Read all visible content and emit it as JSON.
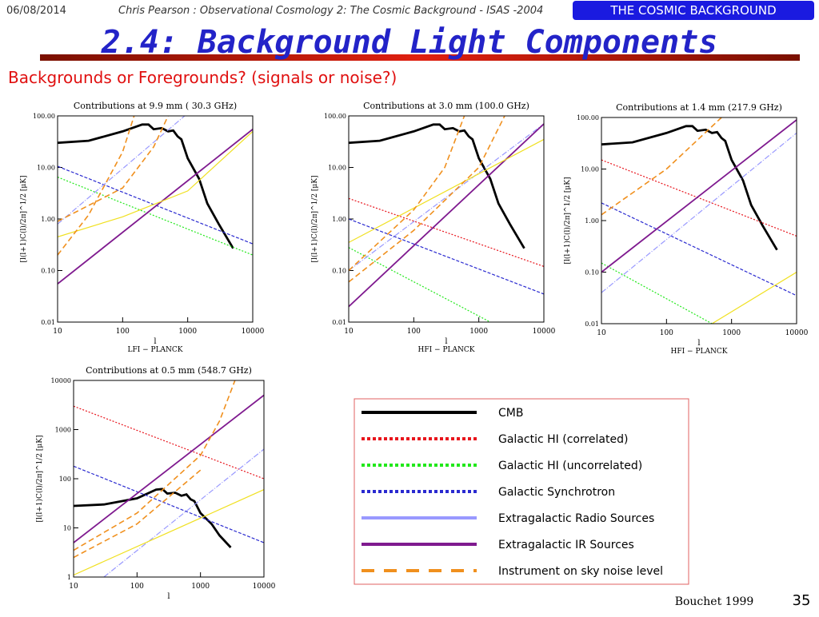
{
  "slide": {
    "date": "06/08/2014",
    "footer": "Chris Pearson :   Observational Cosmology 2: The Cosmic Background - ISAS -2004",
    "badge": "THE COSMIC BACKGROUND",
    "title": "2.4: Background Light Components",
    "subtitle": "Backgrounds or Foregrounds? (signals or noise?)",
    "credit": "Bouchet 1999",
    "page": "35"
  },
  "legend": [
    {
      "name": "CMB",
      "color": "#000000",
      "dash": "solid"
    },
    {
      "name": "Galactic HI (correlated)",
      "color": "#e8141c",
      "dash": "dotted"
    },
    {
      "name": "Galactic HI (uncorrelated)",
      "color": "#22e81b",
      "dash": "dotted"
    },
    {
      "name": "Galactic Synchrotron",
      "color": "#2a2ad0",
      "dash": "dashed"
    },
    {
      "name": "Extragalactic Radio Sources",
      "color": "#9999ff",
      "dash": "dashdot"
    },
    {
      "name": "Extragalactic IR Sources",
      "color": "#7f1a8f",
      "dash": "solid"
    },
    {
      "name": "Instrument on sky noise level",
      "color": "#f0901e",
      "dash": "longdash"
    }
  ],
  "chart_data": [
    {
      "type": "line",
      "title": "Contributions at 9.9 mm ( 30.3 GHz)",
      "xlabel": "l",
      "xlabel2": "LFI − PLANCK",
      "ylabel": "[l(l+1)C(l)/2π]^1/2 [μK]",
      "xscale": "log",
      "yscale": "log",
      "xlim": [
        10,
        10000
      ],
      "ylim": [
        0.01,
        100
      ],
      "xticks": [
        10,
        100,
        1000,
        10000
      ],
      "yticks": [
        {
          "value": 100,
          "label": "100.00"
        },
        {
          "value": 10,
          "label": "10.00"
        },
        {
          "value": 1,
          "label": "1.00"
        },
        {
          "value": 0.1,
          "label": "0.10"
        },
        {
          "value": 0.01,
          "label": "0.01"
        }
      ],
      "series": [
        {
          "color": "#000000",
          "x": [
            10,
            30,
            100,
            200,
            250,
            300,
            400,
            500,
            600,
            700,
            800,
            1000,
            1500,
            2000,
            3000,
            5000
          ],
          "values": [
            30,
            33,
            50,
            68,
            68,
            55,
            58,
            50,
            52,
            40,
            35,
            15,
            6,
            2,
            0.8,
            0.27
          ]
        },
        {
          "color": "#22e81b",
          "x": [
            10,
            10000
          ],
          "values": [
            6.5,
            0.2
          ]
        },
        {
          "color": "#2a2ad0",
          "x": [
            10,
            10000
          ],
          "values": [
            10.5,
            0.33
          ]
        },
        {
          "color": "#9999ff",
          "x": [
            10,
            900
          ],
          "values": [
            0.8,
            100
          ]
        },
        {
          "color": "#7f1a8f",
          "x": [
            10,
            10000
          ],
          "values": [
            0.055,
            55
          ]
        },
        {
          "color": "#f0e020",
          "x": [
            10,
            100,
            1000,
            10000
          ],
          "values": [
            0.45,
            1.1,
            3.5,
            50
          ]
        },
        {
          "color": "#f0901e",
          "x": [
            10,
            30,
            100,
            150
          ],
          "values": [
            0.2,
            1.2,
            20,
            100
          ]
        },
        {
          "color": "#f0901e",
          "x": [
            10,
            100,
            300,
            500
          ],
          "values": [
            0.9,
            4,
            25,
            100
          ]
        }
      ]
    },
    {
      "type": "line",
      "title": "Contributions at 3.0 mm (100.0 GHz)",
      "xlabel": "l",
      "xlabel2": "HFI − PLANCK",
      "ylabel": "[l(l+1)C(l)/2π]^1/2 [μK]",
      "xscale": "log",
      "yscale": "log",
      "xlim": [
        10,
        10000
      ],
      "ylim": [
        0.01,
        100
      ],
      "xticks": [
        10,
        100,
        1000,
        10000
      ],
      "yticks": [
        {
          "value": 100,
          "label": "100.00"
        },
        {
          "value": 10,
          "label": "10.00"
        },
        {
          "value": 1,
          "label": "1.00"
        },
        {
          "value": 0.1,
          "label": "0.10"
        },
        {
          "value": 0.01,
          "label": "0.01"
        }
      ],
      "series": [
        {
          "color": "#000000",
          "x": [
            10,
            30,
            100,
            200,
            250,
            300,
            400,
            500,
            600,
            700,
            800,
            1000,
            1500,
            2000,
            3000,
            5000
          ],
          "values": [
            30,
            33,
            50,
            68,
            68,
            55,
            58,
            50,
            52,
            40,
            35,
            15,
            6,
            2,
            0.8,
            0.27
          ]
        },
        {
          "color": "#e8141c",
          "x": [
            10,
            10000
          ],
          "values": [
            2.5,
            0.12
          ]
        },
        {
          "color": "#22e81b",
          "x": [
            10,
            1500
          ],
          "values": [
            0.28,
            0.01
          ]
        },
        {
          "color": "#2a2ad0",
          "x": [
            10,
            10000
          ],
          "values": [
            1.0,
            0.035
          ]
        },
        {
          "color": "#9999ff",
          "x": [
            10,
            10000
          ],
          "values": [
            0.1,
            70
          ]
        },
        {
          "color": "#7f1a8f",
          "x": [
            10,
            10000
          ],
          "values": [
            0.02,
            70
          ]
        },
        {
          "color": "#f0e020",
          "x": [
            10,
            10000
          ],
          "values": [
            0.35,
            35
          ]
        },
        {
          "color": "#f0901e",
          "x": [
            10,
            100,
            300,
            600
          ],
          "values": [
            0.1,
            1.5,
            10,
            100
          ]
        },
        {
          "color": "#f0901e",
          "x": [
            10,
            100,
            1000,
            2500
          ],
          "values": [
            0.06,
            0.6,
            10,
            100
          ]
        }
      ]
    },
    {
      "type": "line",
      "title": "Contributions at 1.4 mm (217.9 GHz)",
      "xlabel": "l",
      "xlabel2": "HFI − PLANCK",
      "ylabel": "[l(l+1)C(l)/2π]^1/2 [μK]",
      "xscale": "log",
      "yscale": "log",
      "xlim": [
        10,
        10000
      ],
      "ylim": [
        0.01,
        100
      ],
      "xticks": [
        10,
        100,
        1000,
        10000
      ],
      "yticks": [
        {
          "value": 100,
          "label": "100.00"
        },
        {
          "value": 10,
          "label": "10.00"
        },
        {
          "value": 1,
          "label": "1.00"
        },
        {
          "value": 0.1,
          "label": "0.10"
        },
        {
          "value": 0.01,
          "label": "0.01"
        }
      ],
      "series": [
        {
          "color": "#000000",
          "x": [
            10,
            30,
            100,
            200,
            250,
            300,
            400,
            500,
            600,
            700,
            800,
            1000,
            1500,
            2000,
            3000,
            5000
          ],
          "values": [
            30,
            33,
            50,
            68,
            68,
            55,
            58,
            50,
            52,
            40,
            35,
            15,
            6,
            2,
            0.8,
            0.27
          ]
        },
        {
          "color": "#e8141c",
          "x": [
            10,
            10000
          ],
          "values": [
            15,
            0.5
          ]
        },
        {
          "color": "#22e81b",
          "x": [
            10,
            500
          ],
          "values": [
            0.15,
            0.01
          ]
        },
        {
          "color": "#2a2ad0",
          "x": [
            10,
            10000
          ],
          "values": [
            2.2,
            0.035
          ]
        },
        {
          "color": "#9999ff",
          "x": [
            10,
            10000
          ],
          "values": [
            0.04,
            50
          ]
        },
        {
          "color": "#7f1a8f",
          "x": [
            10,
            10000
          ],
          "values": [
            0.1,
            90
          ]
        },
        {
          "color": "#f0e020",
          "x": [
            500,
            10000
          ],
          "values": [
            0.01,
            0.1
          ]
        },
        {
          "color": "#f0901e",
          "x": [
            10,
            100,
            700
          ],
          "values": [
            1.3,
            10,
            100
          ]
        }
      ]
    },
    {
      "type": "line",
      "title": "Contributions at 0.5 mm (548.7 GHz)",
      "xlabel": "l",
      "ylabel": "[l(l+1)C(l)/2π]^1/2 [μK]",
      "xscale": "log",
      "yscale": "log",
      "xlim": [
        10,
        10000
      ],
      "ylim": [
        1,
        10000
      ],
      "xticks": [
        10,
        100,
        1000,
        10000
      ],
      "yticks": [
        10000,
        1000,
        100,
        10,
        1
      ],
      "series": [
        {
          "color": "#000000",
          "x": [
            10,
            30,
            100,
            200,
            250,
            300,
            400,
            500,
            600,
            700,
            800,
            1000,
            1500,
            2000,
            3000
          ],
          "values": [
            28,
            30,
            40,
            60,
            62,
            50,
            52,
            45,
            48,
            38,
            35,
            20,
            12,
            7,
            4
          ]
        },
        {
          "color": "#e8141c",
          "x": [
            10,
            10000
          ],
          "values": [
            3000,
            100
          ]
        },
        {
          "color": "#2a2ad0",
          "x": [
            10,
            10000
          ],
          "values": [
            180,
            5
          ]
        },
        {
          "color": "#9999ff",
          "x": [
            30,
            10000
          ],
          "values": [
            1,
            400
          ]
        },
        {
          "color": "#7f1a8f",
          "x": [
            10,
            10000
          ],
          "values": [
            5,
            5000
          ]
        },
        {
          "color": "#f0e020",
          "x": [
            10,
            10000
          ],
          "values": [
            1.1,
            60
          ]
        },
        {
          "color": "#f0901e",
          "x": [
            10,
            100,
            1000,
            2000,
            3500
          ],
          "values": [
            3.5,
            20,
            300,
            1500,
            10000
          ]
        },
        {
          "color": "#f0901e",
          "x": [
            10,
            100,
            1000
          ],
          "values": [
            2.5,
            12,
            150
          ]
        }
      ]
    }
  ]
}
